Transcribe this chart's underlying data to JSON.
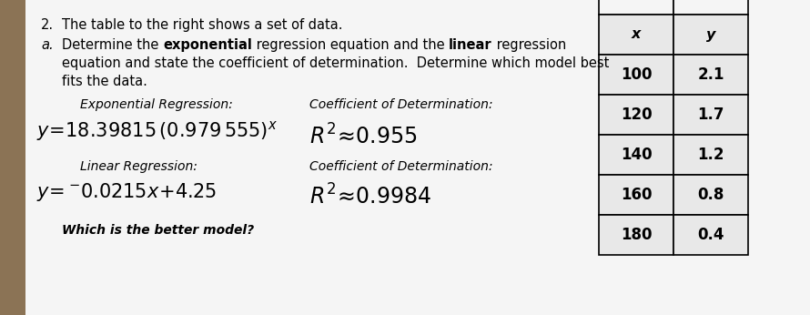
{
  "bg_color": "#c8c8c8",
  "paper_color": "#f5f5f5",
  "problem_number": "2.",
  "problem_text": "The table to the right shows a set of data.",
  "part_a_label": "a.",
  "part_a_line1_pre": "Determine the ",
  "part_a_bold1": "exponential",
  "part_a_line1_mid": " regression equation and the ",
  "part_a_bold2": "linear",
  "part_a_line1_post": " regression",
  "part_a_line2": "equation and state the coefficient of determination.  Determine which model best",
  "part_a_line3": "fits the data.",
  "exp_label": "Exponential Regression:",
  "exp_eq_text": "y=18.39815 (0.979 555)",
  "exp_coeff_label": "Coefficient of Determination:",
  "exp_coeff_value": "R²≈ 0.955",
  "lin_label": "Linear Regression:",
  "lin_eq_text": "y= ¯0.0215x + 4.25",
  "lin_coeff_label": "Coefficient of Determination:",
  "lin_coeff_value": "R² ≈ 0.9984",
  "which_better": "Which is the better model?",
  "table_headers": [
    "x",
    "y"
  ],
  "table_data": [
    [
      100,
      2.1
    ],
    [
      120,
      1.7
    ],
    [
      140,
      1.2
    ],
    [
      160,
      0.8
    ],
    [
      180,
      0.4
    ]
  ],
  "table_cell_color": "#e8e8e8",
  "left_margin_color": "#8b7355"
}
